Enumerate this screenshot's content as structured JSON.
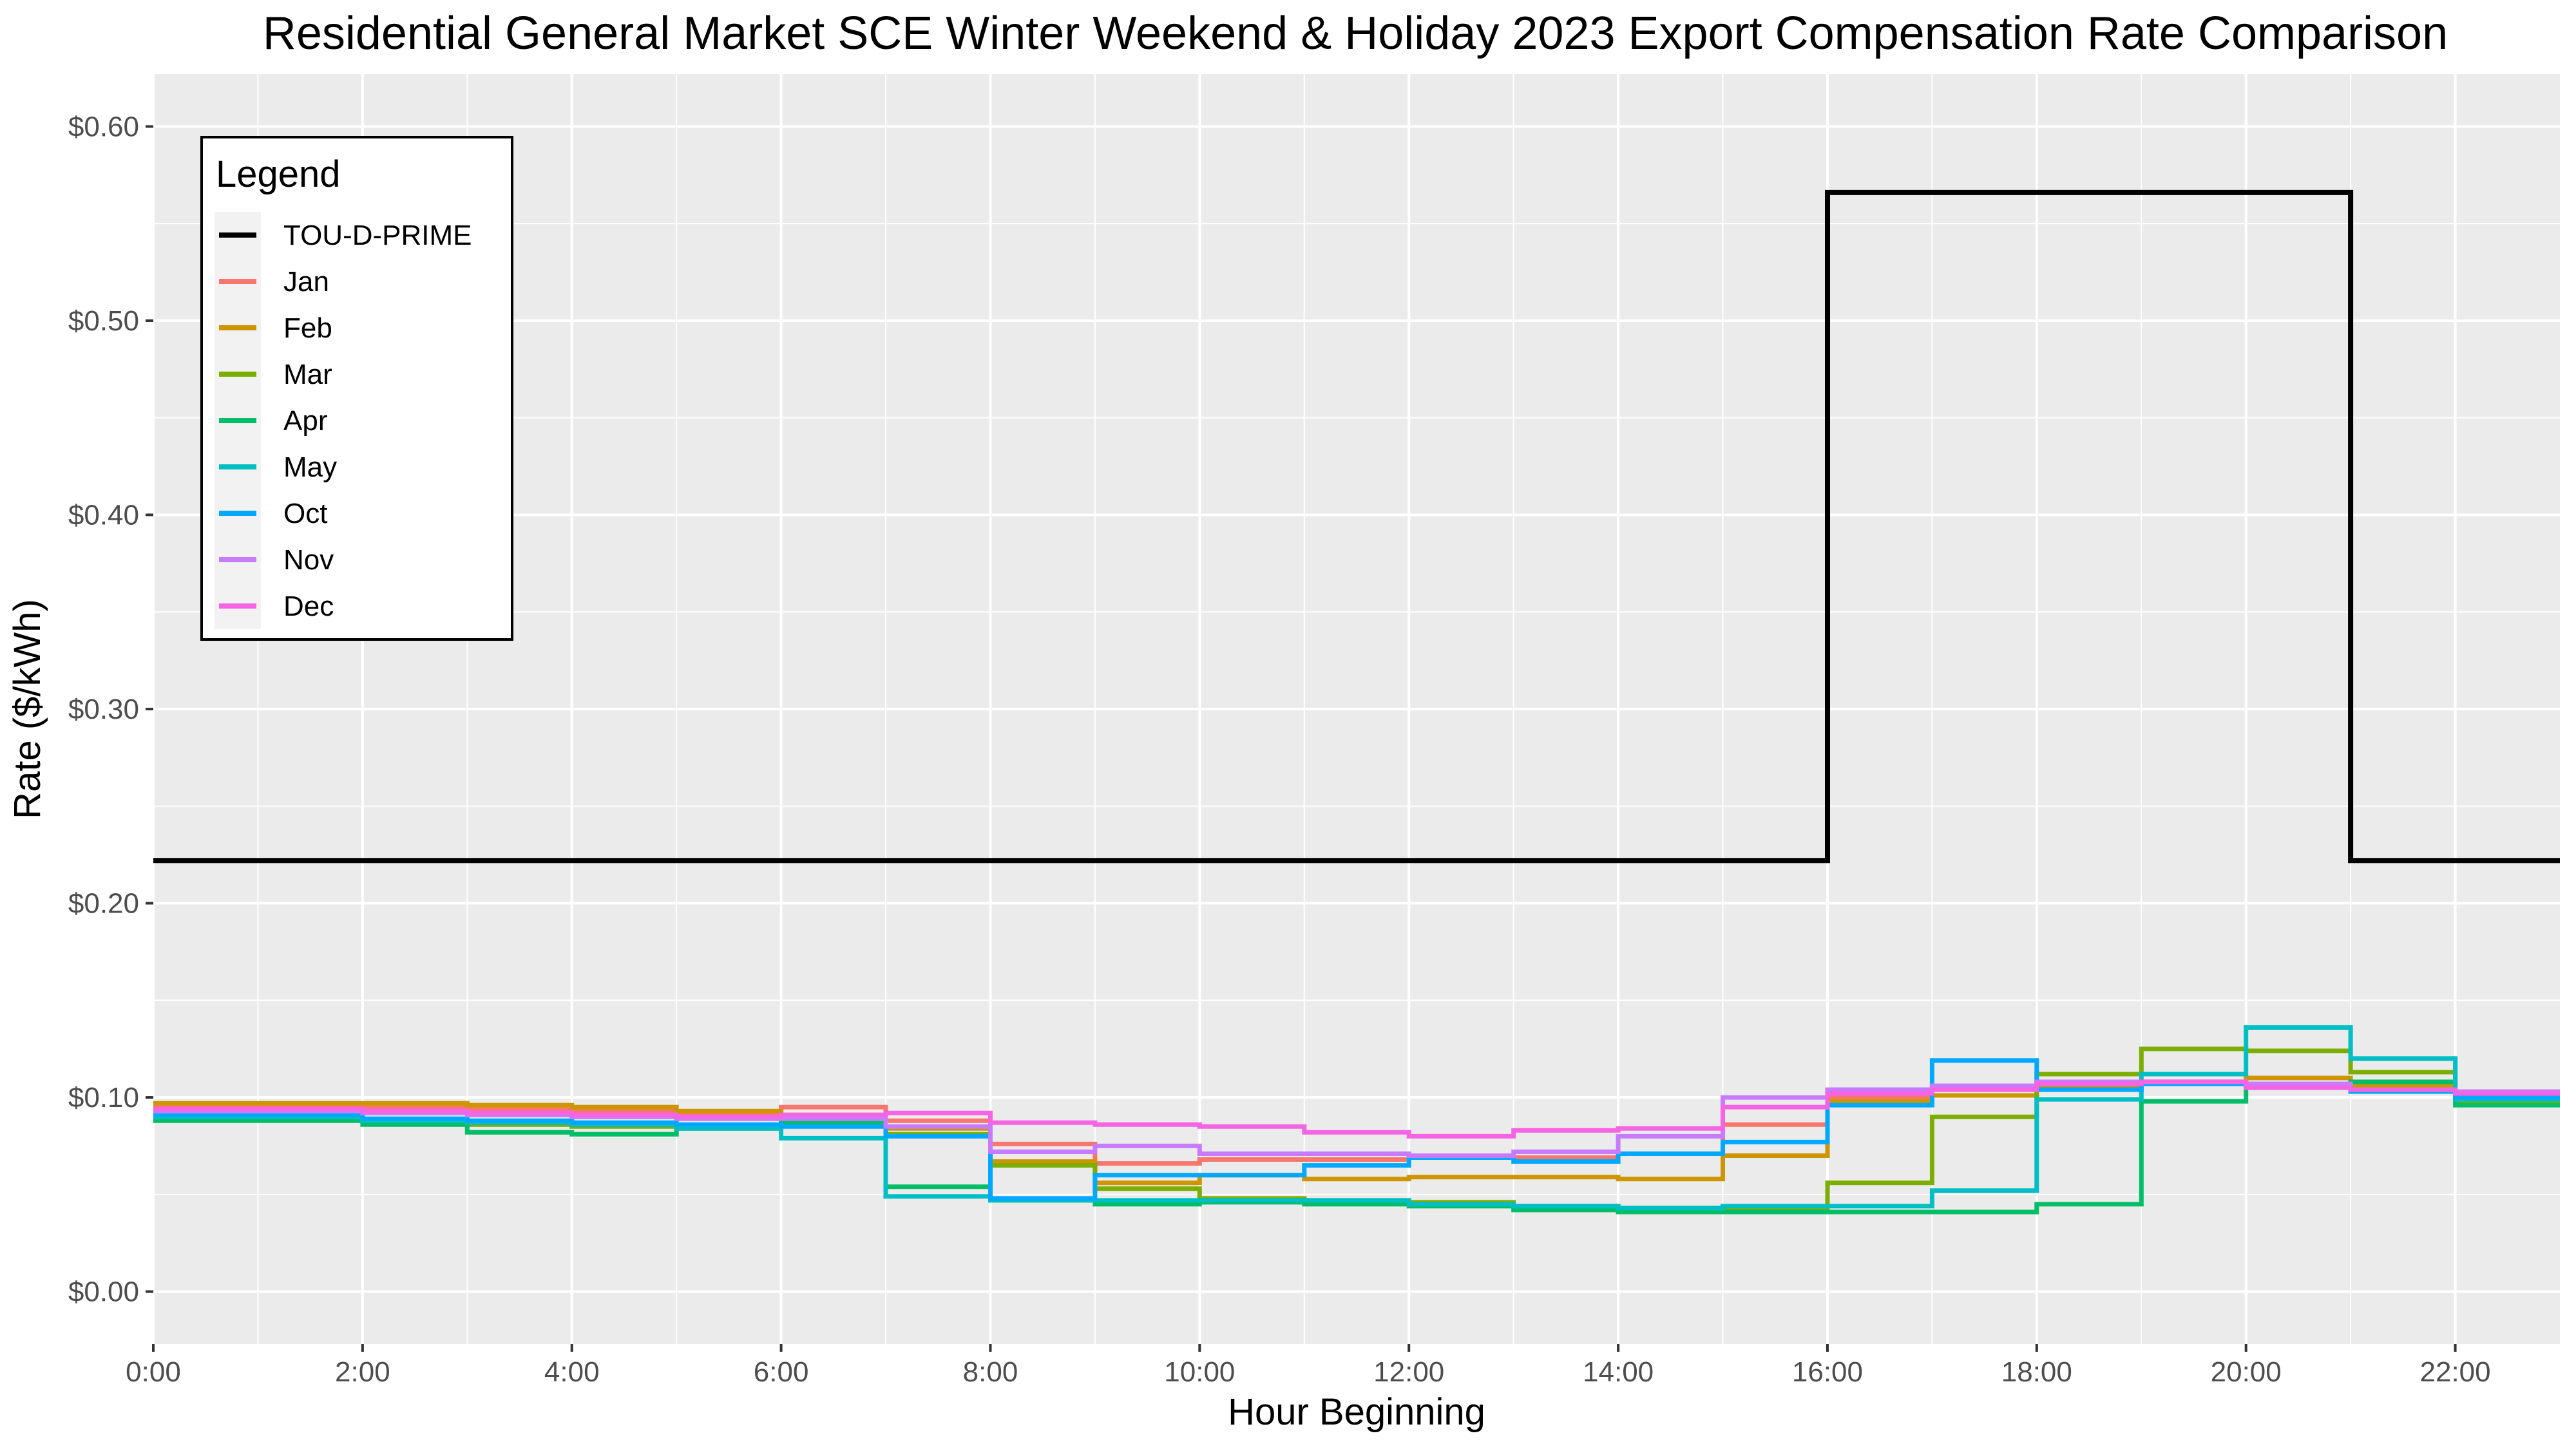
{
  "chart_data": {
    "type": "line",
    "step": true,
    "title": "Residential General Market SCE Winter Weekend & Holiday 2023 Export Compensation Rate Comparison",
    "xlabel": "Hour Beginning",
    "ylabel": "Rate ($/kWh)",
    "xlim": [
      0,
      23
    ],
    "ylim": [
      -0.027,
      0.627
    ],
    "x_ticks": [
      "0:00",
      "2:00",
      "4:00",
      "6:00",
      "8:00",
      "10:00",
      "12:00",
      "14:00",
      "16:00",
      "18:00",
      "20:00",
      "22:00"
    ],
    "y_ticks": [
      "$0.00",
      "$0.10",
      "$0.20",
      "$0.30",
      "$0.40",
      "$0.50",
      "$0.60"
    ],
    "grid": true,
    "legend_title": "Legend",
    "legend_position": "top-left",
    "x": [
      0,
      1,
      2,
      3,
      4,
      5,
      6,
      7,
      8,
      9,
      10,
      11,
      12,
      13,
      14,
      15,
      16,
      17,
      18,
      19,
      20,
      21,
      22,
      23
    ],
    "series": [
      {
        "name": "TOU-D-PRIME",
        "color": "#000000",
        "values": [
          0.222,
          0.222,
          0.222,
          0.222,
          0.222,
          0.222,
          0.222,
          0.222,
          0.222,
          0.222,
          0.222,
          0.222,
          0.222,
          0.222,
          0.222,
          0.222,
          0.566,
          0.566,
          0.566,
          0.566,
          0.566,
          0.222,
          0.222,
          0.222
        ]
      },
      {
        "name": "Jan",
        "color": "#F8766D",
        "values": [
          0.096,
          0.096,
          0.095,
          0.094,
          0.093,
          0.092,
          0.095,
          0.088,
          0.076,
          0.066,
          0.068,
          0.068,
          0.069,
          0.069,
          0.071,
          0.086,
          0.1,
          0.104,
          0.106,
          0.108,
          0.107,
          0.104,
          0.102,
          0.102
        ]
      },
      {
        "name": "Feb",
        "color": "#CD9600",
        "values": [
          0.097,
          0.097,
          0.097,
          0.096,
          0.095,
          0.093,
          0.091,
          0.084,
          0.067,
          0.056,
          0.06,
          0.058,
          0.059,
          0.059,
          0.058,
          0.07,
          0.098,
          0.101,
          0.105,
          0.108,
          0.11,
          0.106,
          0.101,
          0.101
        ]
      },
      {
        "name": "Mar",
        "color": "#7CAE00",
        "values": [
          0.089,
          0.089,
          0.088,
          0.086,
          0.085,
          0.084,
          0.086,
          0.081,
          0.065,
          0.053,
          0.048,
          0.047,
          0.046,
          0.044,
          0.043,
          0.043,
          0.056,
          0.09,
          0.112,
          0.125,
          0.124,
          0.113,
          0.098,
          0.098
        ]
      },
      {
        "name": "Apr",
        "color": "#00BE67",
        "values": [
          0.088,
          0.088,
          0.086,
          0.082,
          0.081,
          0.085,
          0.087,
          0.054,
          0.047,
          0.045,
          0.046,
          0.045,
          0.044,
          0.042,
          0.041,
          0.041,
          0.041,
          0.041,
          0.045,
          0.098,
          0.106,
          0.108,
          0.096,
          0.096
        ]
      },
      {
        "name": "May",
        "color": "#00BFC4",
        "values": [
          0.09,
          0.09,
          0.088,
          0.087,
          0.086,
          0.084,
          0.079,
          0.049,
          0.047,
          0.047,
          0.047,
          0.047,
          0.045,
          0.044,
          0.043,
          0.044,
          0.044,
          0.052,
          0.099,
          0.112,
          0.136,
          0.12,
          0.099,
          0.099
        ]
      },
      {
        "name": "Oct",
        "color": "#00A9FF",
        "values": [
          0.091,
          0.091,
          0.089,
          0.088,
          0.087,
          0.086,
          0.085,
          0.08,
          0.048,
          0.06,
          0.06,
          0.065,
          0.069,
          0.067,
          0.071,
          0.077,
          0.096,
          0.119,
          0.104,
          0.107,
          0.106,
          0.103,
          0.1,
          0.1
        ]
      },
      {
        "name": "Nov",
        "color": "#C77CFF",
        "values": [
          0.093,
          0.093,
          0.092,
          0.091,
          0.09,
          0.089,
          0.089,
          0.085,
          0.072,
          0.075,
          0.071,
          0.071,
          0.07,
          0.072,
          0.08,
          0.1,
          0.104,
          0.106,
          0.108,
          0.108,
          0.107,
          0.104,
          0.103,
          0.103
        ]
      },
      {
        "name": "Dec",
        "color": "#F564E3",
        "values": [
          0.094,
          0.094,
          0.093,
          0.092,
          0.091,
          0.09,
          0.091,
          0.092,
          0.087,
          0.086,
          0.085,
          0.082,
          0.08,
          0.083,
          0.084,
          0.095,
          0.102,
          0.104,
          0.107,
          0.108,
          0.105,
          0.104,
          0.102,
          0.102
        ]
      }
    ]
  }
}
